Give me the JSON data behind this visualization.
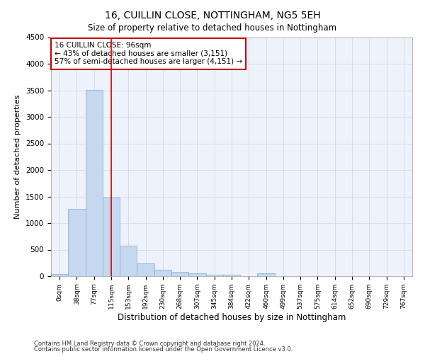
{
  "title": "16, CUILLIN CLOSE, NOTTINGHAM, NG5 5EH",
  "subtitle": "Size of property relative to detached houses in Nottingham",
  "xlabel": "Distribution of detached houses by size in Nottingham",
  "ylabel": "Number of detached properties",
  "bar_color": "#c5d8f0",
  "bar_edge_color": "#7aadd4",
  "background_color": "#eef2fb",
  "grid_color": "#d0d8e8",
  "categories": [
    "0sqm",
    "38sqm",
    "77sqm",
    "115sqm",
    "153sqm",
    "192sqm",
    "230sqm",
    "268sqm",
    "307sqm",
    "345sqm",
    "384sqm",
    "422sqm",
    "460sqm",
    "499sqm",
    "537sqm",
    "575sqm",
    "614sqm",
    "652sqm",
    "690sqm",
    "729sqm",
    "767sqm"
  ],
  "values": [
    40,
    1270,
    3510,
    1480,
    575,
    240,
    115,
    85,
    55,
    30,
    30,
    0,
    55,
    0,
    0,
    0,
    0,
    0,
    0,
    0,
    0
  ],
  "ylim": [
    0,
    4500
  ],
  "yticks": [
    0,
    500,
    1000,
    1500,
    2000,
    2500,
    3000,
    3500,
    4000,
    4500
  ],
  "property_line_x": 3,
  "annotation_title": "16 CUILLIN CLOSE: 96sqm",
  "annotation_line1": "← 43% of detached houses are smaller (3,151)",
  "annotation_line2": "57% of semi-detached houses are larger (4,151) →",
  "annotation_box_color": "#cc0000",
  "footnote1": "Contains HM Land Registry data © Crown copyright and database right 2024.",
  "footnote2": "Contains public sector information licensed under the Open Government Licence v3.0."
}
